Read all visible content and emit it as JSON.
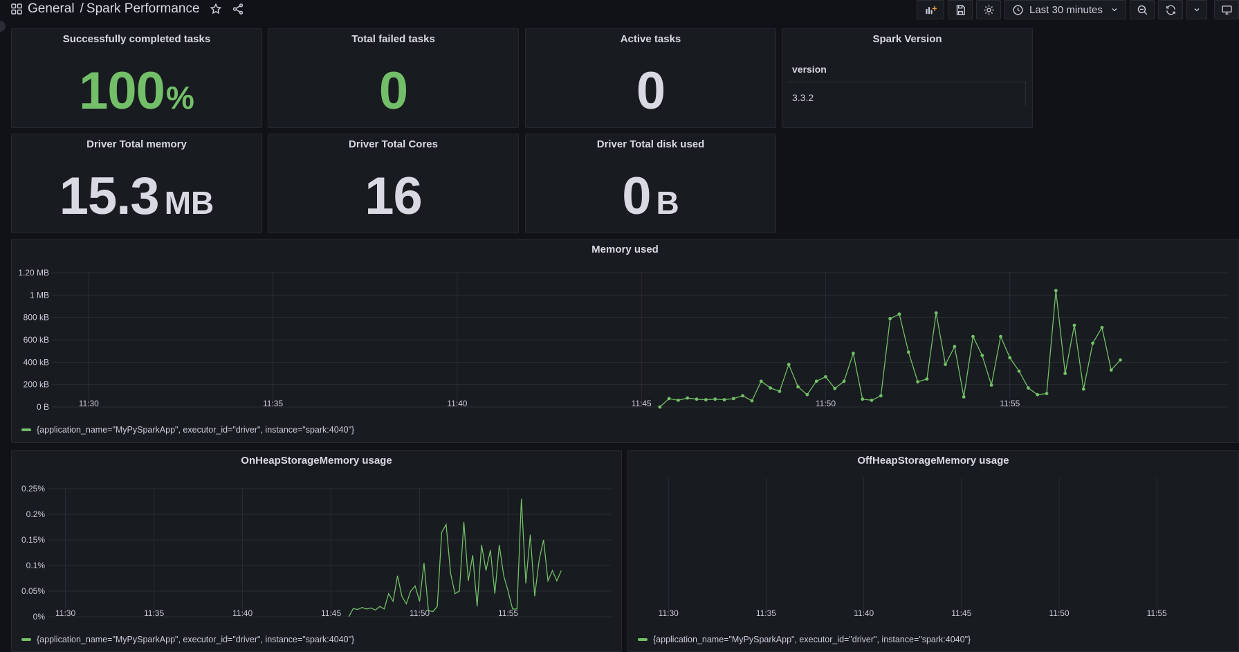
{
  "header": {
    "breadcrumb_folder": "General",
    "breadcrumb_separator": "/",
    "dashboard_title": "Spark Performance",
    "time_range": "Last 30 minutes"
  },
  "colors": {
    "series": "#73bf69",
    "panel_bg": "#181b1f",
    "page_bg": "#111217"
  },
  "stats": {
    "completed": {
      "title": "Successfully completed tasks",
      "value": "100",
      "unit": "%"
    },
    "failed": {
      "title": "Total failed tasks",
      "value": "0",
      "unit": ""
    },
    "active": {
      "title": "Active tasks",
      "value": "0",
      "unit": ""
    },
    "version": {
      "title": "Spark Version",
      "column": "version",
      "cell": "3.3.2"
    },
    "memory": {
      "title": "Driver Total memory",
      "value": "15.3",
      "unit": "MB"
    },
    "cores": {
      "title": "Driver Total Cores",
      "value": "16",
      "unit": ""
    },
    "disk": {
      "title": "Driver Total disk used",
      "value": "0",
      "unit": "B"
    }
  },
  "chart_data": [
    {
      "type": "line",
      "title": "Memory used",
      "x_ticks": [
        "11:30",
        "11:35",
        "11:40",
        "11:45",
        "11:50",
        "11:55"
      ],
      "xlim": [
        29,
        60.9
      ],
      "y_ticks": [
        "0 B",
        "200 kB",
        "400 kB",
        "600 kB",
        "800 kB",
        "1 MB",
        "1.20 MB"
      ],
      "ylim": [
        0,
        1200
      ],
      "y_unit": "kB",
      "points": true,
      "series": [
        {
          "name": "{application_name=\"MyPySparkApp\", executor_id=\"driver\", instance=\"spark:4040\"}",
          "x": [
            45.5,
            45.75,
            46,
            46.25,
            46.5,
            46.75,
            47,
            47.25,
            47.5,
            47.75,
            48,
            48.25,
            48.5,
            48.75,
            49,
            49.25,
            49.5,
            49.75,
            50,
            50.25,
            50.5,
            50.75,
            51,
            51.25,
            51.5,
            51.75,
            52,
            52.25,
            52.5,
            52.75,
            53,
            53.25,
            53.5,
            53.75,
            54,
            54.25,
            54.5,
            54.75,
            55,
            55.25,
            55.5,
            55.75,
            56,
            56.25,
            56.5,
            56.75,
            57,
            57.25,
            57.5,
            57.75,
            58
          ],
          "values": [
            0,
            75,
            60,
            80,
            70,
            65,
            70,
            65,
            75,
            100,
            55,
            230,
            170,
            140,
            380,
            180,
            110,
            230,
            270,
            165,
            230,
            480,
            70,
            60,
            100,
            790,
            830,
            490,
            225,
            250,
            840,
            380,
            540,
            90,
            630,
            460,
            195,
            630,
            440,
            320,
            170,
            110,
            120,
            1040,
            300,
            730,
            160,
            570,
            710,
            330,
            420
          ]
        }
      ]
    },
    {
      "type": "line",
      "title": "OnHeapStorageMemory usage",
      "x_ticks": [
        "11:30",
        "11:35",
        "11:40",
        "11:45",
        "11:50",
        "11:55"
      ],
      "xlim": [
        29,
        60.8
      ],
      "y_ticks": [
        "0%",
        "0.05%",
        "0.1%",
        "0.15%",
        "0.2%",
        "0.25%"
      ],
      "ylim": [
        0,
        0.25
      ],
      "y_unit": "%",
      "points": false,
      "series": [
        {
          "name": "{application_name=\"MyPySparkApp\", executor_id=\"driver\", instance=\"spark:4040\"}",
          "x": [
            46,
            46.25,
            46.5,
            46.75,
            47,
            47.25,
            47.5,
            47.75,
            48,
            48.25,
            48.5,
            48.75,
            49,
            49.25,
            49.5,
            49.75,
            50,
            50.25,
            50.5,
            50.75,
            51,
            51.25,
            51.5,
            51.75,
            52,
            52.25,
            52.5,
            52.75,
            53,
            53.25,
            53.5,
            53.75,
            54,
            54.25,
            54.5,
            54.75,
            55,
            55.25,
            55.5,
            55.75,
            56,
            56.25,
            56.5,
            56.75,
            57,
            57.25,
            57.5,
            57.75,
            58
          ],
          "values": [
            0,
            0.016,
            0.014,
            0.018,
            0.015,
            0.017,
            0.013,
            0.02,
            0.015,
            0.045,
            0.03,
            0.08,
            0.04,
            0.025,
            0.05,
            0.06,
            0.03,
            0.105,
            0.012,
            0.01,
            0.02,
            0.165,
            0.18,
            0.085,
            0.045,
            0.05,
            0.185,
            0.07,
            0.12,
            0.02,
            0.14,
            0.09,
            0.13,
            0.045,
            0.14,
            0.08,
            0.05,
            0.015,
            0.015,
            0.23,
            0.065,
            0.16,
            0.04,
            0.11,
            0.15,
            0.07,
            0.09,
            0.07,
            0.09
          ]
        }
      ]
    },
    {
      "type": "line",
      "title": "OffHeapStorageMemory usage",
      "x_ticks": [
        "11:30",
        "11:35",
        "11:40",
        "11:45",
        "11:50",
        "11:55"
      ],
      "xlim": [
        29,
        58.5
      ],
      "y_ticks": [],
      "points": false,
      "series": [
        {
          "name": "{application_name=\"MyPySparkApp\", executor_id=\"driver\", instance=\"spark:4040\"}",
          "x": [],
          "values": []
        }
      ]
    }
  ]
}
